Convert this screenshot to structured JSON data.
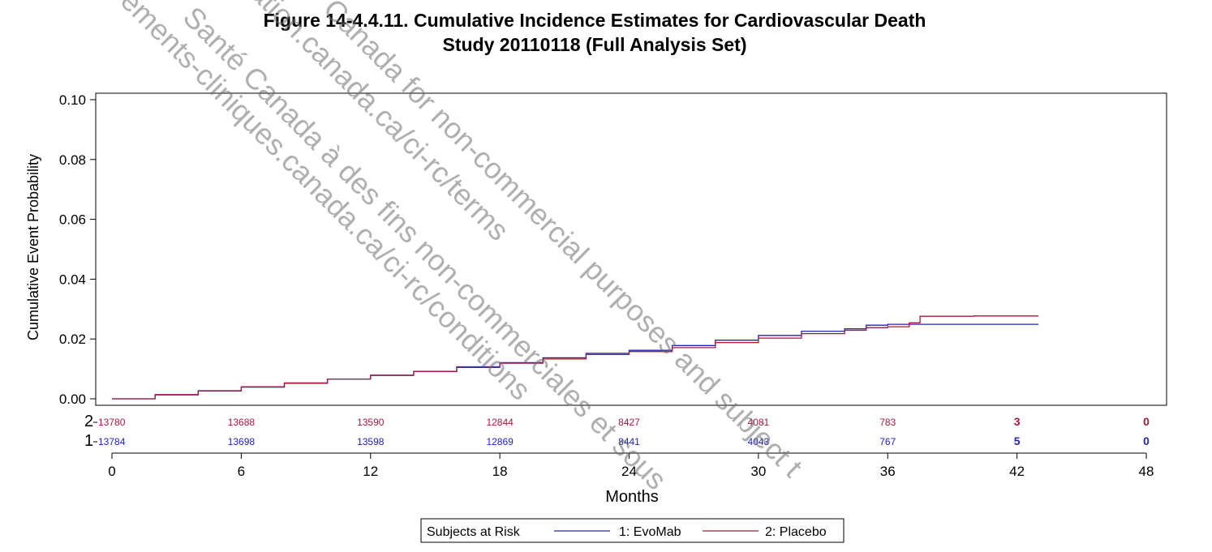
{
  "title_line1": "Figure 14-4.4.11.  Cumulative Incidence Estimates for Cardiovascular Death",
  "title_line2": "Study 20110118 (Full Analysis Set)",
  "watermark": [
    "Santé Canada à des fins non-commerciales et sous",
    "Canada for non-commercial purposes and subject t",
    "ements-cliniques.canada.ca/ci-rc/conditions",
    "ation.canada.ca/ci-rc/terms"
  ],
  "colors": {
    "evomab": "#2323b4",
    "placebo": "#a31a3c",
    "frame": "#000000"
  },
  "chart_data": {
    "type": "line",
    "ylabel": "Cumulative Event Probability",
    "xlabel": "Months",
    "xlim": [
      0,
      48
    ],
    "ylim": [
      0,
      0.1
    ],
    "xticks": [
      0,
      6,
      12,
      18,
      24,
      30,
      36,
      42,
      48
    ],
    "xtick_labels": [
      "0",
      "6",
      "12",
      "18",
      "24",
      "30",
      "36",
      "42",
      "48"
    ],
    "yticks": [
      0,
      0.02,
      0.04,
      0.06,
      0.08,
      0.1
    ],
    "ytick_labels": [
      "0.00",
      "0.02",
      "0.04",
      "0.06",
      "0.08",
      "0.10"
    ],
    "series": [
      {
        "name": "1: EvoMab",
        "color": "#2323b4",
        "points": [
          [
            0,
            0
          ],
          [
            2,
            0.0013
          ],
          [
            4,
            0.0026
          ],
          [
            6,
            0.0039
          ],
          [
            8,
            0.0052
          ],
          [
            10,
            0.0066
          ],
          [
            12,
            0.0079
          ],
          [
            14,
            0.0092
          ],
          [
            16,
            0.0107
          ],
          [
            18,
            0.0121
          ],
          [
            20,
            0.0137
          ],
          [
            22,
            0.0152
          ],
          [
            24,
            0.0162
          ],
          [
            26,
            0.0178
          ],
          [
            28,
            0.0196
          ],
          [
            30,
            0.0212
          ],
          [
            32,
            0.0226
          ],
          [
            34,
            0.0234
          ],
          [
            35,
            0.0246
          ],
          [
            36,
            0.0249
          ],
          [
            38,
            0.0249
          ],
          [
            43,
            0.0249
          ]
        ]
      },
      {
        "name": "2: Placebo",
        "color": "#a31a3c",
        "points": [
          [
            0,
            0
          ],
          [
            2,
            0.0014
          ],
          [
            4,
            0.0027
          ],
          [
            6,
            0.004
          ],
          [
            8,
            0.0053
          ],
          [
            10,
            0.0066
          ],
          [
            12,
            0.0078
          ],
          [
            14,
            0.0091
          ],
          [
            16,
            0.0105
          ],
          [
            18,
            0.0119
          ],
          [
            20,
            0.0133
          ],
          [
            22,
            0.0148
          ],
          [
            24,
            0.0158
          ],
          [
            26,
            0.0171
          ],
          [
            28,
            0.0188
          ],
          [
            30,
            0.0203
          ],
          [
            32,
            0.0218
          ],
          [
            34,
            0.0229
          ],
          [
            35,
            0.0238
          ],
          [
            36,
            0.0241
          ],
          [
            37,
            0.0254
          ],
          [
            37.5,
            0.0276
          ],
          [
            40,
            0.0277
          ],
          [
            43,
            0.0277
          ]
        ]
      }
    ],
    "at_risk": {
      "label": "Subjects at Risk",
      "rows": [
        {
          "id": "2",
          "color": "#a31a3c",
          "values": [
            "13780",
            "13688",
            "13590",
            "12844",
            "8427",
            "4081",
            "783",
            "3",
            "0"
          ]
        },
        {
          "id": "1",
          "color": "#2323b4",
          "values": [
            "13784",
            "13698",
            "13598",
            "12869",
            "8441",
            "4043",
            "767",
            "5",
            "0"
          ]
        }
      ]
    },
    "legend": {
      "title": "Subjects at Risk",
      "entries": [
        "1: EvoMab",
        "2: Placebo"
      ],
      "position": "bottom"
    },
    "grid": false
  }
}
